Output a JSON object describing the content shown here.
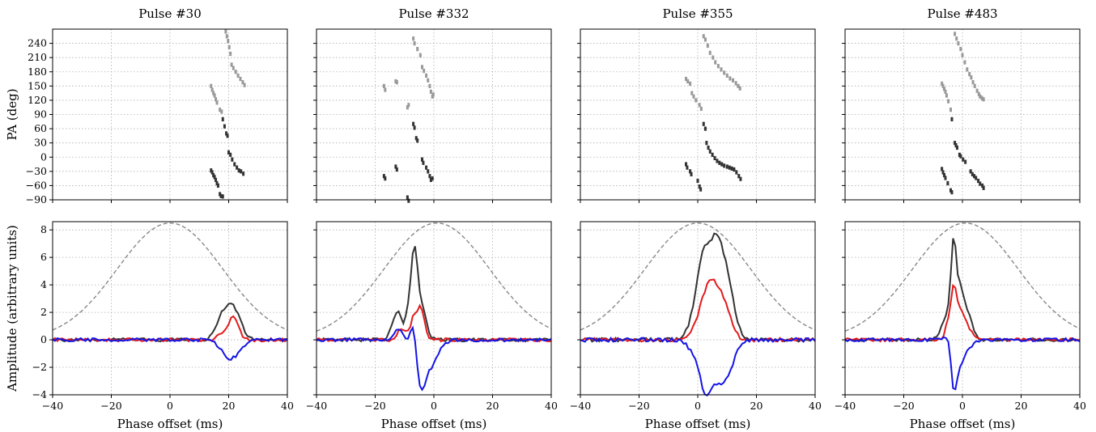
{
  "chart_data": {
    "type": "line",
    "shared": {
      "pa_ylabel": "PA (deg)",
      "amp_ylabel": "Amplitude (arbitrary units)",
      "xlabel": "Phase offset (ms)",
      "xlim": [
        -40,
        40
      ],
      "xticks": [
        -40,
        -20,
        0,
        20,
        40
      ],
      "xtick_labels": [
        "−40",
        "−20",
        "0",
        "20",
        "40"
      ],
      "pa_ylim": [
        -90,
        270
      ],
      "pa_yticks": [
        -90,
        -60,
        -30,
        0,
        30,
        60,
        90,
        120,
        150,
        180,
        210,
        240
      ],
      "pa_ytick_labels": [
        "−90",
        "−60",
        "−30",
        "0",
        "30",
        "60",
        "90",
        "120",
        "150",
        "180",
        "210",
        "240"
      ],
      "amp_ylim": [
        -4,
        8.6
      ],
      "amp_yticks": [
        -4,
        -2,
        0,
        2,
        4,
        6,
        8
      ],
      "amp_ytick_labels": [
        "−4",
        "−2",
        "0",
        "2",
        "4",
        "6",
        "8"
      ],
      "grid": true,
      "colors": {
        "total": "#333333",
        "linear": "#e31a1c",
        "circular": "#1414e6",
        "reference": "#888888",
        "pa_primary": "#333333",
        "pa_secondary": "#999999"
      },
      "reference_profile": {
        "peak": 8.5,
        "sigma": 18
      }
    },
    "panels": [
      {
        "title": "Pulse #30",
        "center": 0,
        "pa": [
          [
            14,
            -28
          ],
          [
            14.4,
            -32
          ],
          [
            14.8,
            -38
          ],
          [
            15.2,
            -42
          ],
          [
            15.6,
            -48
          ],
          [
            16,
            -55
          ],
          [
            16.4,
            -60
          ],
          [
            17,
            -78
          ],
          [
            17.4,
            -82
          ],
          [
            18,
            -83
          ],
          [
            14,
            150
          ],
          [
            14.4,
            142
          ],
          [
            14.8,
            135
          ],
          [
            15.2,
            130
          ],
          [
            15.6,
            122
          ],
          [
            16,
            115
          ],
          [
            17,
            100
          ],
          [
            17.6,
            96
          ],
          [
            18,
            80
          ],
          [
            18.6,
            65
          ],
          [
            19.2,
            50
          ],
          [
            19.6,
            45
          ],
          [
            20,
            10
          ],
          [
            20.6,
            5
          ],
          [
            21.2,
            -5
          ],
          [
            22,
            -15
          ],
          [
            22.8,
            -22
          ],
          [
            23.5,
            -28
          ],
          [
            24.2,
            -30
          ],
          [
            25,
            -35
          ],
          [
            19,
            265
          ],
          [
            19.4,
            255
          ],
          [
            19.8,
            245
          ],
          [
            20.2,
            232
          ],
          [
            20.6,
            218
          ],
          [
            21,
            195
          ],
          [
            21.6,
            188
          ],
          [
            22.4,
            180
          ],
          [
            23.2,
            172
          ],
          [
            24,
            165
          ],
          [
            24.8,
            158
          ],
          [
            25.4,
            152
          ]
        ],
        "total_peaks": [
          [
            19.5,
            1.6,
            2.5
          ],
          [
            22.5,
            1.4,
            2.2
          ],
          [
            17,
            0.7,
            2
          ]
        ],
        "linear_peaks": [
          [
            22,
            1.45,
            1.6
          ],
          [
            19,
            0.6,
            2
          ]
        ],
        "circular_peaks": [
          [
            20,
            -1.25,
            2.5
          ],
          [
            23.5,
            -0.5,
            1.8
          ]
        ],
        "noise": 0.12,
        "seed": 30
      },
      {
        "title": "Pulse #332",
        "center": 1,
        "pa": [
          [
            -17,
            -40
          ],
          [
            -16.6,
            -45
          ],
          [
            -13,
            -20
          ],
          [
            -12.6,
            -26
          ],
          [
            -9,
            -85
          ],
          [
            -8.6,
            -92
          ],
          [
            -7,
            70
          ],
          [
            -6.6,
            62
          ],
          [
            -6,
            40
          ],
          [
            -5.6,
            35
          ],
          [
            -4,
            -5
          ],
          [
            -3.6,
            -12
          ],
          [
            -2.6,
            -22
          ],
          [
            -2,
            -30
          ],
          [
            -1.4,
            -40
          ],
          [
            -1,
            -48
          ],
          [
            -0.5,
            -45
          ],
          [
            -17,
            150
          ],
          [
            -16.6,
            142
          ],
          [
            -13,
            160
          ],
          [
            -12.6,
            158
          ],
          [
            -9,
            105
          ],
          [
            -8.6,
            110
          ],
          [
            -7,
            250
          ],
          [
            -6.6,
            240
          ],
          [
            -5.6,
            228
          ],
          [
            -4.6,
            215
          ],
          [
            -4,
            190
          ],
          [
            -3.4,
            182
          ],
          [
            -2.6,
            172
          ],
          [
            -2,
            162
          ],
          [
            -1.4,
            150
          ],
          [
            -1,
            138
          ],
          [
            -0.5,
            128
          ],
          [
            -0.2,
            132
          ]
        ],
        "total_peaks": [
          [
            -7,
            4.8,
            1
          ],
          [
            -6,
            2.4,
            0.9
          ],
          [
            -4.5,
            1.8,
            1.2
          ],
          [
            -9,
            1.8,
            1.1
          ],
          [
            -12,
            1.7,
            1
          ],
          [
            -14,
            1.1,
            1.1
          ],
          [
            -3,
            0.9,
            1.3
          ]
        ],
        "linear_peaks": [
          [
            -4.5,
            2.4,
            1.2
          ],
          [
            -7,
            1.5,
            1
          ],
          [
            -11,
            0.8,
            1.5
          ]
        ],
        "circular_peaks": [
          [
            -4.5,
            -2.6,
            1.3
          ],
          [
            -2,
            -1.7,
            2.2
          ],
          [
            -7,
            1.3,
            0.8
          ],
          [
            -12,
            0.8,
            1.2
          ],
          [
            0.5,
            -0.6,
            2.5
          ]
        ],
        "noise": 0.12,
        "seed": 332
      },
      {
        "title": "Pulse #355",
        "center": 0,
        "pa": [
          [
            -4,
            -15
          ],
          [
            -3.6,
            -22
          ],
          [
            -2.6,
            -30
          ],
          [
            -2.2,
            -36
          ],
          [
            0,
            -50
          ],
          [
            0.6,
            -62
          ],
          [
            1,
            -68
          ],
          [
            2,
            70
          ],
          [
            2.6,
            60
          ],
          [
            3,
            30
          ],
          [
            3.6,
            20
          ],
          [
            4.2,
            12
          ],
          [
            5,
            5
          ],
          [
            5.8,
            -2
          ],
          [
            6.6,
            -8
          ],
          [
            7.4,
            -12
          ],
          [
            8.2,
            -15
          ],
          [
            9,
            -18
          ],
          [
            10,
            -20
          ],
          [
            10.8,
            -22
          ],
          [
            11.6,
            -24
          ],
          [
            12.4,
            -26
          ],
          [
            13.2,
            -32
          ],
          [
            14,
            -40
          ],
          [
            14.6,
            -46
          ],
          [
            -4,
            165
          ],
          [
            -3.4,
            160
          ],
          [
            -2.6,
            155
          ],
          [
            -2,
            135
          ],
          [
            -1.4,
            128
          ],
          [
            -0.6,
            120
          ],
          [
            0.6,
            110
          ],
          [
            1.2,
            102
          ],
          [
            2,
            255
          ],
          [
            2.6,
            248
          ],
          [
            3.4,
            235
          ],
          [
            4.2,
            220
          ],
          [
            5.2,
            210
          ],
          [
            6,
            200
          ],
          [
            7,
            192
          ],
          [
            8,
            185
          ],
          [
            9,
            178
          ],
          [
            10,
            172
          ],
          [
            11,
            166
          ],
          [
            12,
            162
          ],
          [
            13,
            156
          ],
          [
            13.8,
            150
          ],
          [
            14.4,
            145
          ]
        ],
        "total_peaks": [
          [
            3,
            4.5,
            2.5
          ],
          [
            6.5,
            4.8,
            2
          ],
          [
            9.5,
            3.4,
            2
          ],
          [
            1,
            2.2,
            2
          ],
          [
            12,
            1.3,
            2
          ],
          [
            -2,
            0.8,
            2
          ]
        ],
        "linear_peaks": [
          [
            3,
            3.2,
            2.2
          ],
          [
            6.5,
            2.8,
            2
          ],
          [
            10,
            1.8,
            2
          ],
          [
            -1,
            0.6,
            2
          ]
        ],
        "circular_peaks": [
          [
            3,
            -3.1,
            1.8
          ],
          [
            7,
            -2.4,
            2.2
          ],
          [
            10,
            -1.5,
            2
          ],
          [
            0,
            -1.2,
            2.5
          ],
          [
            12,
            -0.6,
            2
          ]
        ],
        "noise": 0.14,
        "seed": 355
      },
      {
        "title": "Pulse #483",
        "center": 1,
        "pa": [
          [
            -7,
            -25
          ],
          [
            -6.6,
            -32
          ],
          [
            -6.2,
            -38
          ],
          [
            -5.8,
            -44
          ],
          [
            -5,
            -55
          ],
          [
            -4,
            -70
          ],
          [
            -3.6,
            -74
          ],
          [
            -2.6,
            30
          ],
          [
            -2.2,
            25
          ],
          [
            -1.8,
            20
          ],
          [
            -1,
            5
          ],
          [
            -0.6,
            2
          ],
          [
            0.2,
            -5
          ],
          [
            1,
            -10
          ],
          [
            2.8,
            -30
          ],
          [
            3.4,
            -36
          ],
          [
            4,
            -40
          ],
          [
            4.6,
            -44
          ],
          [
            5.4,
            -50
          ],
          [
            6,
            -56
          ],
          [
            6.8,
            -60
          ],
          [
            7.2,
            -65
          ],
          [
            -7,
            155
          ],
          [
            -6.6,
            150
          ],
          [
            -6.2,
            144
          ],
          [
            -5.8,
            138
          ],
          [
            -5.4,
            130
          ],
          [
            -4.8,
            118
          ],
          [
            -4,
            100
          ],
          [
            -3.6,
            80
          ],
          [
            -2.6,
            260
          ],
          [
            -2,
            250
          ],
          [
            -1.4,
            240
          ],
          [
            -0.6,
            228
          ],
          [
            0,
            215
          ],
          [
            0.8,
            200
          ],
          [
            1.6,
            185
          ],
          [
            2.4,
            175
          ],
          [
            3,
            168
          ],
          [
            3.6,
            158
          ],
          [
            4.2,
            150
          ],
          [
            5,
            140
          ],
          [
            5.6,
            133
          ],
          [
            6,
            128
          ],
          [
            6.6,
            125
          ],
          [
            7.2,
            122
          ]
        ],
        "total_peaks": [
          [
            -3,
            6.9,
            0.9
          ],
          [
            -1,
            2.7,
            1
          ],
          [
            0.5,
            1.8,
            1.3
          ],
          [
            -5,
            1.5,
            1
          ],
          [
            2.5,
            1.1,
            1.5
          ],
          [
            -7,
            0.8,
            1.2
          ]
        ],
        "linear_peaks": [
          [
            -3,
            3.4,
            0.9
          ],
          [
            -1,
            1.9,
            1.2
          ],
          [
            1.5,
            1,
            1.5
          ],
          [
            -5,
            1.1,
            1
          ]
        ],
        "circular_peaks": [
          [
            -3,
            -3.2,
            0.9
          ],
          [
            -1,
            -1.6,
            1.4
          ],
          [
            1.5,
            -0.6,
            2
          ],
          [
            -5,
            0.3,
            1
          ]
        ],
        "noise": 0.12,
        "seed": 483
      }
    ]
  }
}
